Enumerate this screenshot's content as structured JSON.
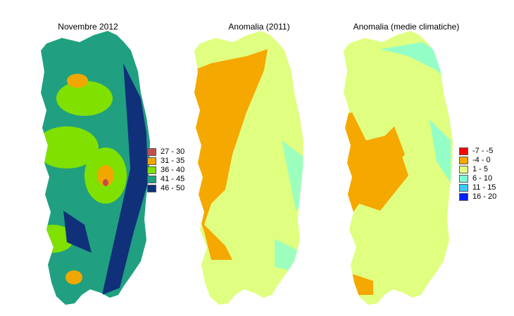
{
  "maps": [
    {
      "title": "Novembre 2012"
    },
    {
      "title": "Anomalia (2011)"
    },
    {
      "title": "Anomalia (medie climatiche)"
    }
  ],
  "legend_main": [
    {
      "label": "27 - 30",
      "color": "#c0504d"
    },
    {
      "label": "31 - 35",
      "color": "#f0a800"
    },
    {
      "label": "36 - 40",
      "color": "#80e000"
    },
    {
      "label": "41 - 45",
      "color": "#20a080"
    },
    {
      "label": "46 - 50",
      "color": "#10307a"
    }
  ],
  "legend_anomaly": [
    {
      "label": "-7 - -5",
      "color": "#ff0000"
    },
    {
      "label": "-4 - 0",
      "color": "#f5a800"
    },
    {
      "label": "1 - 5",
      "color": "#e0ff80"
    },
    {
      "label": "6 - 10",
      "color": "#80ffd8"
    },
    {
      "label": "11 - 15",
      "color": "#3cc8ff"
    },
    {
      "label": "16 - 20",
      "color": "#0020ff"
    }
  ]
}
